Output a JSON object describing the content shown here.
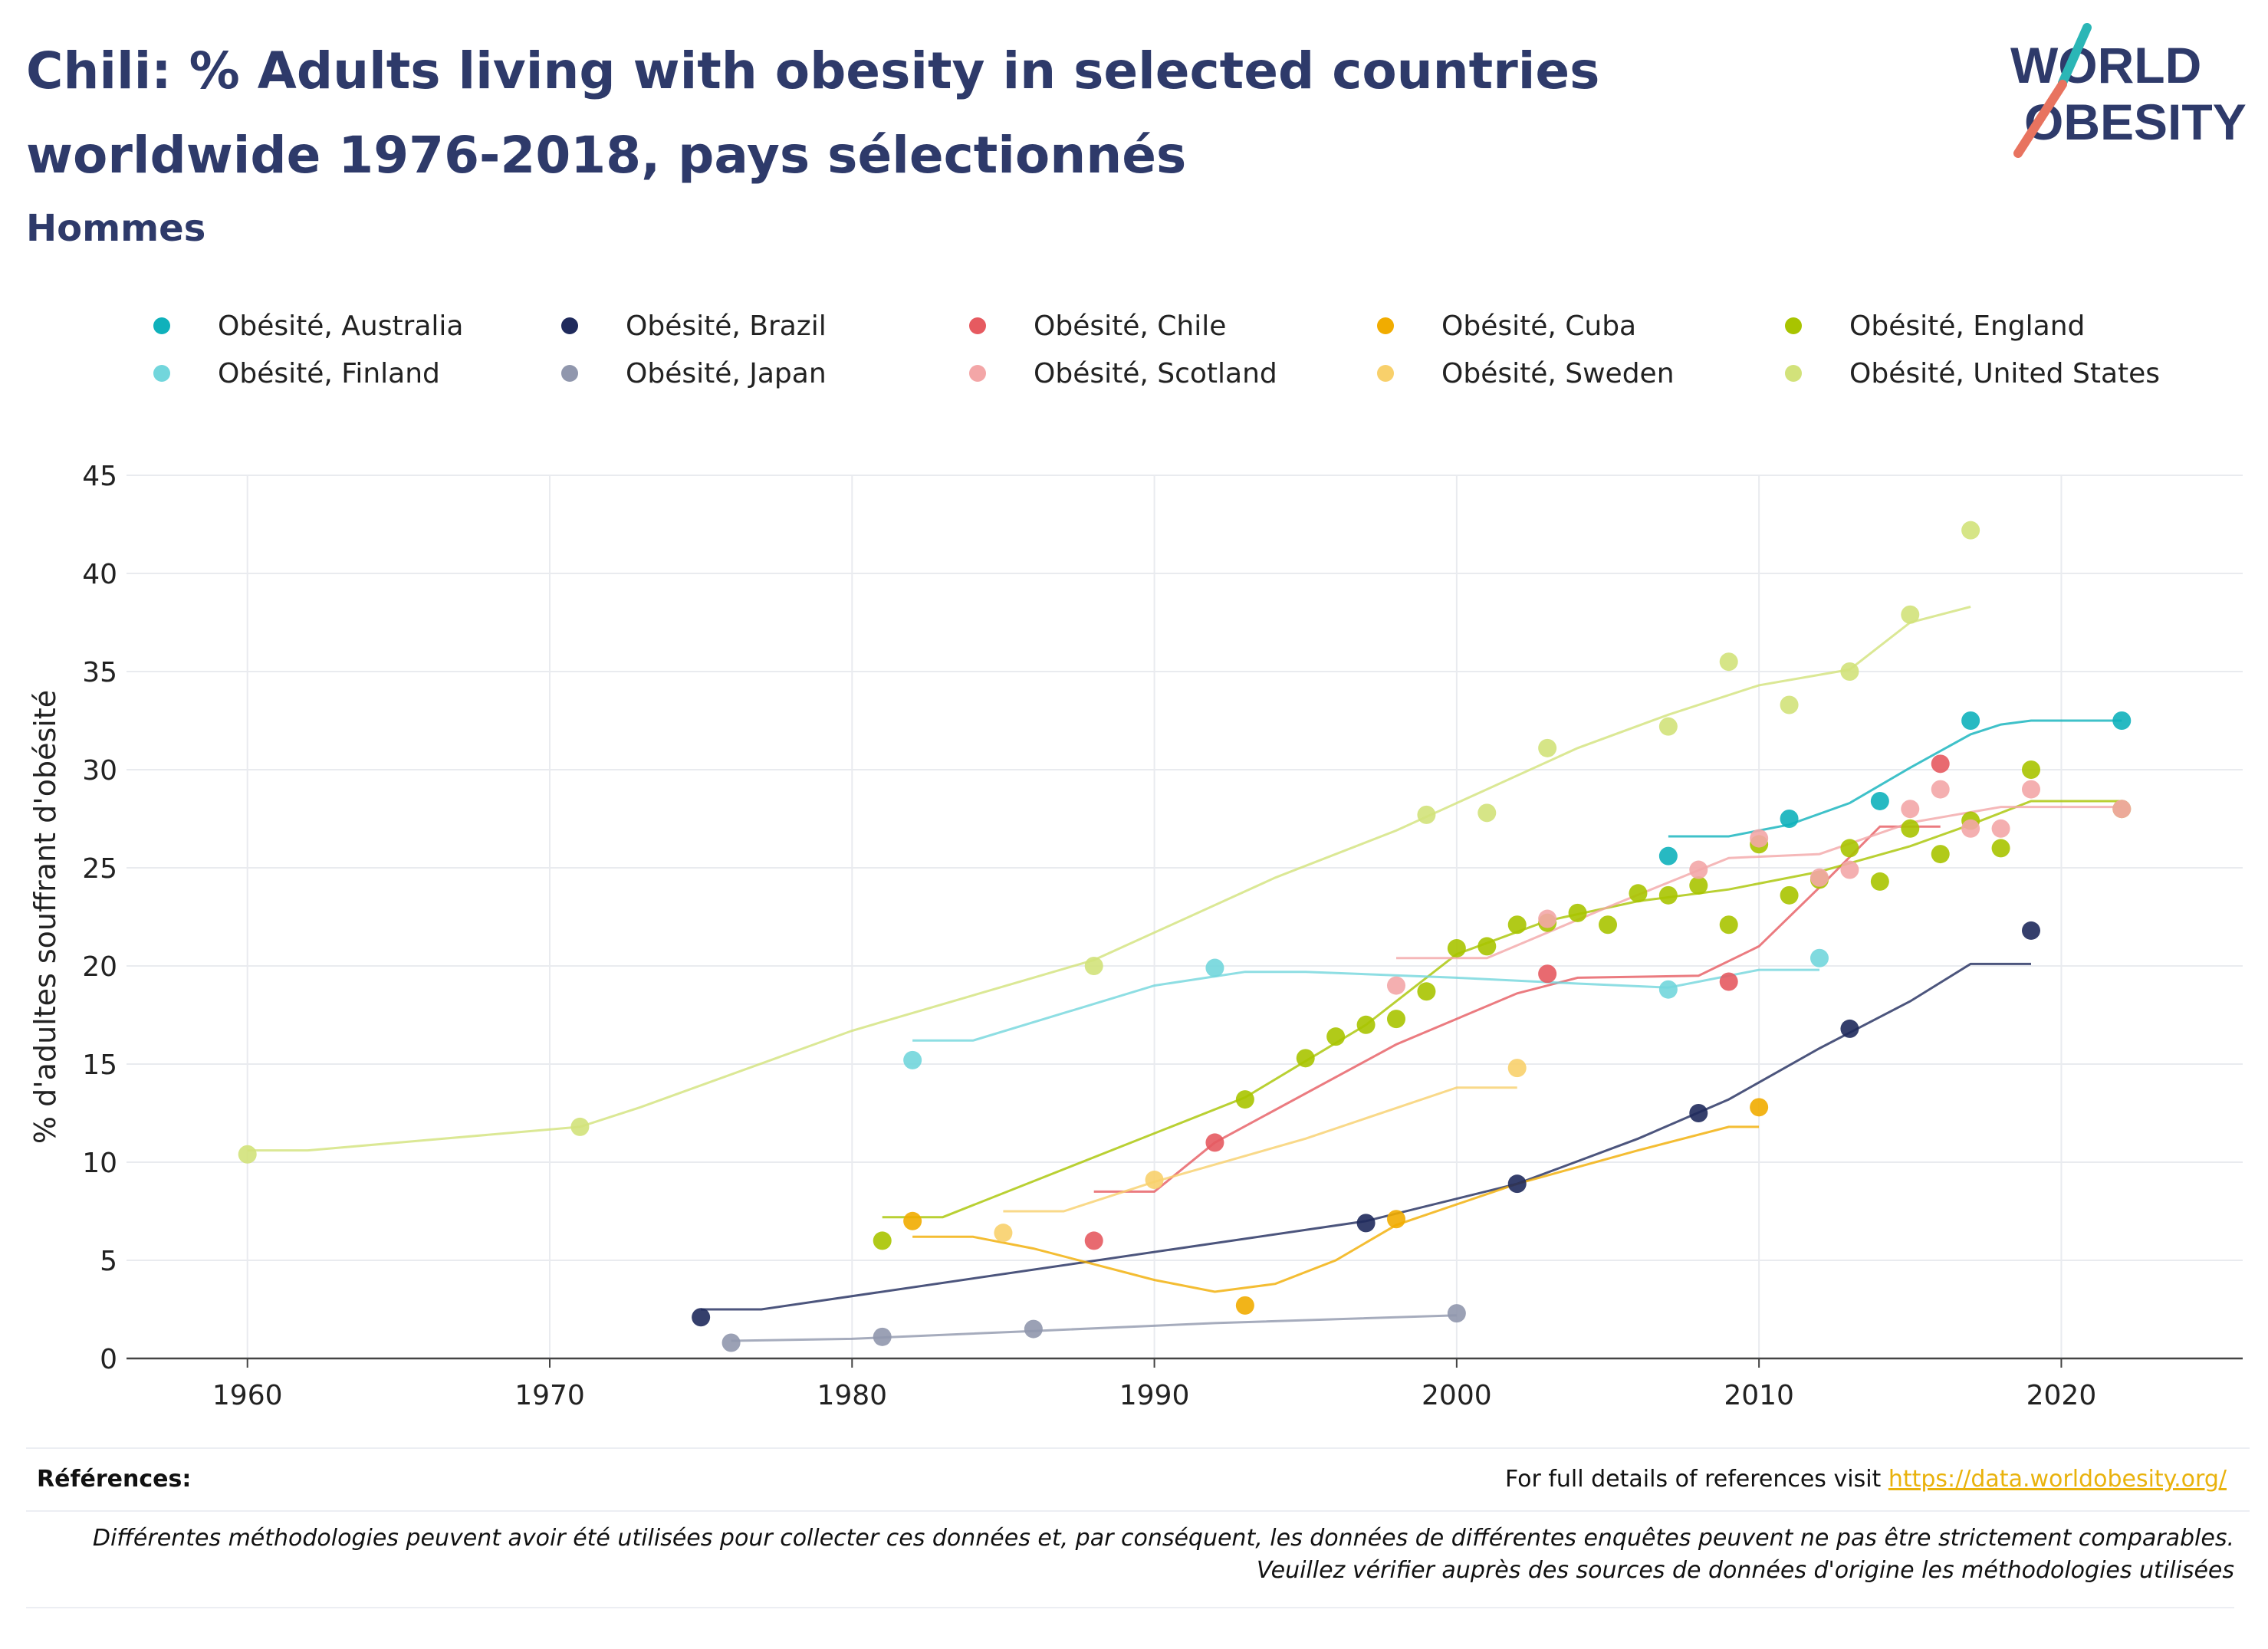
{
  "title": "Chili: % Adults living with obesity in selected countries worldwide 1976-2018, pays sélectionnés",
  "subtitle": "Hommes",
  "logo": {
    "line1": "WORLD",
    "line2": "OBESITY",
    "colors": {
      "navy": "#2e3a6a",
      "teal": "#2bb6b6",
      "coral": "#e8735f"
    }
  },
  "references": {
    "label": "Références:",
    "text": "For full details of references visit ",
    "link": "https://data.worldobesity.org/"
  },
  "disclaimer": "Différentes méthodologies peuvent avoir été utilisées pour collecter ces données et, par conséquent, les données de différentes enquêtes peuvent ne pas être strictement comparables. Veuillez vérifier auprès des sources de données d'origine les méthodologies utilisées",
  "chart_data": {
    "type": "scatter",
    "xlim": [
      1956,
      2026
    ],
    "ylim": [
      0,
      45
    ],
    "xticks": [
      1960,
      1970,
      1980,
      1990,
      2000,
      2010,
      2020
    ],
    "yticks": [
      0,
      5,
      10,
      15,
      20,
      25,
      30,
      35,
      40,
      45
    ],
    "ylabel": "% d'adultes souffrant d'obésité",
    "xlabel": "",
    "grid": true,
    "legend_position": "top",
    "series": [
      {
        "name": "Obésité, Australia",
        "color": "#0fb1bb",
        "points": [
          [
            2007,
            25.6
          ],
          [
            2011,
            27.5
          ],
          [
            2014,
            28.4
          ],
          [
            2017,
            32.5
          ],
          [
            2022,
            32.5
          ]
        ],
        "trend": [
          [
            2007,
            26.6
          ],
          [
            2009,
            26.6
          ],
          [
            2011,
            27.2
          ],
          [
            2013,
            28.3
          ],
          [
            2015,
            30.1
          ],
          [
            2017,
            31.8
          ],
          [
            2018,
            32.3
          ],
          [
            2019,
            32.5
          ],
          [
            2022,
            32.5
          ]
        ]
      },
      {
        "name": "Obésité, Brazil",
        "color": "#1f2a5c",
        "points": [
          [
            1975,
            2.1
          ],
          [
            1997,
            6.9
          ],
          [
            2002,
            8.9
          ],
          [
            2008,
            12.5
          ],
          [
            2013,
            16.8
          ],
          [
            2019,
            21.8
          ]
        ],
        "trend": [
          [
            1975,
            2.5
          ],
          [
            1977,
            2.5
          ],
          [
            1997,
            7.0
          ],
          [
            2002,
            8.9
          ],
          [
            2006,
            11.2
          ],
          [
            2009,
            13.2
          ],
          [
            2012,
            15.8
          ],
          [
            2015,
            18.2
          ],
          [
            2017,
            20.1
          ],
          [
            2019,
            20.1
          ]
        ]
      },
      {
        "name": "Obésité, Chile",
        "color": "#e65a60",
        "points": [
          [
            1988,
            6.0
          ],
          [
            1992,
            11.0
          ],
          [
            2003,
            19.6
          ],
          [
            2009,
            19.2
          ],
          [
            2016,
            30.3
          ]
        ],
        "trend": [
          [
            1988,
            8.5
          ],
          [
            1990,
            8.5
          ],
          [
            1992,
            11.0
          ],
          [
            1998,
            16.0
          ],
          [
            2002,
            18.6
          ],
          [
            2004,
            19.4
          ],
          [
            2008,
            19.5
          ],
          [
            2010,
            21.0
          ],
          [
            2012,
            24.0
          ],
          [
            2014,
            27.1
          ],
          [
            2016,
            27.1
          ]
        ]
      },
      {
        "name": "Obésité, Cuba",
        "color": "#f1ac00",
        "points": [
          [
            1982,
            7.0
          ],
          [
            1993,
            2.7
          ],
          [
            1998,
            7.1
          ],
          [
            2010,
            12.8
          ]
        ],
        "trend": [
          [
            1982,
            6.2
          ],
          [
            1984,
            6.2
          ],
          [
            1986,
            5.6
          ],
          [
            1990,
            4.0
          ],
          [
            1992,
            3.4
          ],
          [
            1994,
            3.8
          ],
          [
            1996,
            5.0
          ],
          [
            1998,
            6.8
          ],
          [
            2002,
            8.9
          ],
          [
            2006,
            10.6
          ],
          [
            2009,
            11.8
          ],
          [
            2010,
            11.8
          ]
        ]
      },
      {
        "name": "Obésité, England",
        "color": "#a8c400",
        "points": [
          [
            1981,
            6.0
          ],
          [
            1993,
            13.2
          ],
          [
            1995,
            15.3
          ],
          [
            1996,
            16.4
          ],
          [
            1997,
            17.0
          ],
          [
            1998,
            17.3
          ],
          [
            1999,
            18.7
          ],
          [
            2000,
            20.9
          ],
          [
            2001,
            21.0
          ],
          [
            2002,
            22.1
          ],
          [
            2003,
            22.2
          ],
          [
            2004,
            22.7
          ],
          [
            2005,
            22.1
          ],
          [
            2006,
            23.7
          ],
          [
            2007,
            23.6
          ],
          [
            2008,
            24.1
          ],
          [
            2009,
            22.1
          ],
          [
            2010,
            26.2
          ],
          [
            2011,
            23.6
          ],
          [
            2012,
            24.4
          ],
          [
            2013,
            26.0
          ],
          [
            2014,
            24.3
          ],
          [
            2015,
            27.0
          ],
          [
            2016,
            25.7
          ],
          [
            2017,
            27.4
          ],
          [
            2018,
            26.0
          ],
          [
            2019,
            30.0
          ],
          [
            2022,
            28.0
          ]
        ],
        "trend": [
          [
            1981,
            7.2
          ],
          [
            1983,
            7.2
          ],
          [
            1993,
            13.3
          ],
          [
            1997,
            17.0
          ],
          [
            2000,
            20.6
          ],
          [
            2003,
            22.3
          ],
          [
            2006,
            23.3
          ],
          [
            2009,
            23.9
          ],
          [
            2012,
            24.8
          ],
          [
            2015,
            26.1
          ],
          [
            2017,
            27.2
          ],
          [
            2019,
            28.4
          ],
          [
            2022,
            28.4
          ]
        ]
      },
      {
        "name": "Obésité, Finland",
        "color": "#72d6dc",
        "points": [
          [
            1982,
            15.2
          ],
          [
            1992,
            19.9
          ],
          [
            2007,
            18.8
          ],
          [
            2012,
            20.4
          ]
        ],
        "trend": [
          [
            1982,
            16.2
          ],
          [
            1984,
            16.2
          ],
          [
            1990,
            19.0
          ],
          [
            1993,
            19.7
          ],
          [
            1995,
            19.7
          ],
          [
            2000,
            19.4
          ],
          [
            2004,
            19.1
          ],
          [
            2007,
            18.9
          ],
          [
            2010,
            19.8
          ],
          [
            2012,
            19.8
          ]
        ]
      },
      {
        "name": "Obésité, Japan",
        "color": "#9097ad",
        "points": [
          [
            1976,
            0.8
          ],
          [
            1981,
            1.1
          ],
          [
            1986,
            1.5
          ],
          [
            2000,
            2.3
          ]
        ],
        "trend": [
          [
            1976,
            0.9
          ],
          [
            1980,
            1.0
          ],
          [
            1986,
            1.4
          ],
          [
            1992,
            1.8
          ],
          [
            2000,
            2.2
          ]
        ]
      },
      {
        "name": "Obésité, Scotland",
        "color": "#f3a6a7",
        "points": [
          [
            1998,
            19.0
          ],
          [
            2003,
            22.4
          ],
          [
            2008,
            24.9
          ],
          [
            2010,
            26.5
          ],
          [
            2012,
            24.5
          ],
          [
            2013,
            24.9
          ],
          [
            2015,
            28.0
          ],
          [
            2016,
            29.0
          ],
          [
            2017,
            27.0
          ],
          [
            2018,
            27.0
          ],
          [
            2019,
            29.0
          ],
          [
            2022,
            28.0
          ]
        ],
        "trend": [
          [
            1998,
            20.4
          ],
          [
            2001,
            20.4
          ],
          [
            2005,
            23.0
          ],
          [
            2009,
            25.5
          ],
          [
            2012,
            25.7
          ],
          [
            2015,
            27.3
          ],
          [
            2018,
            28.1
          ],
          [
            2022,
            28.1
          ]
        ]
      },
      {
        "name": "Obésité, Sweden",
        "color": "#f8d06b",
        "points": [
          [
            1985,
            6.4
          ],
          [
            1990,
            9.1
          ],
          [
            2002,
            14.8
          ]
        ],
        "trend": [
          [
            1985,
            7.5
          ],
          [
            1987,
            7.5
          ],
          [
            1990,
            9.0
          ],
          [
            1995,
            11.2
          ],
          [
            2000,
            13.8
          ],
          [
            2002,
            13.8
          ]
        ]
      },
      {
        "name": "Obésité, United States",
        "color": "#d2e27a",
        "points": [
          [
            1960,
            10.4
          ],
          [
            1971,
            11.8
          ],
          [
            1988,
            20.0
          ],
          [
            1999,
            27.7
          ],
          [
            2001,
            27.8
          ],
          [
            2003,
            31.1
          ],
          [
            2007,
            32.2
          ],
          [
            2009,
            35.5
          ],
          [
            2011,
            33.3
          ],
          [
            2013,
            35.0
          ],
          [
            2015,
            37.9
          ],
          [
            2017,
            42.2
          ]
        ],
        "trend": [
          [
            1960,
            10.6
          ],
          [
            1962,
            10.6
          ],
          [
            1971,
            11.8
          ],
          [
            1973,
            12.8
          ],
          [
            1980,
            16.7
          ],
          [
            1988,
            20.3
          ],
          [
            1994,
            24.5
          ],
          [
            1998,
            26.9
          ],
          [
            2001,
            29.0
          ],
          [
            2004,
            31.1
          ],
          [
            2007,
            32.8
          ],
          [
            2010,
            34.3
          ],
          [
            2013,
            35.1
          ],
          [
            2015,
            37.5
          ],
          [
            2017,
            38.3
          ]
        ]
      }
    ]
  }
}
